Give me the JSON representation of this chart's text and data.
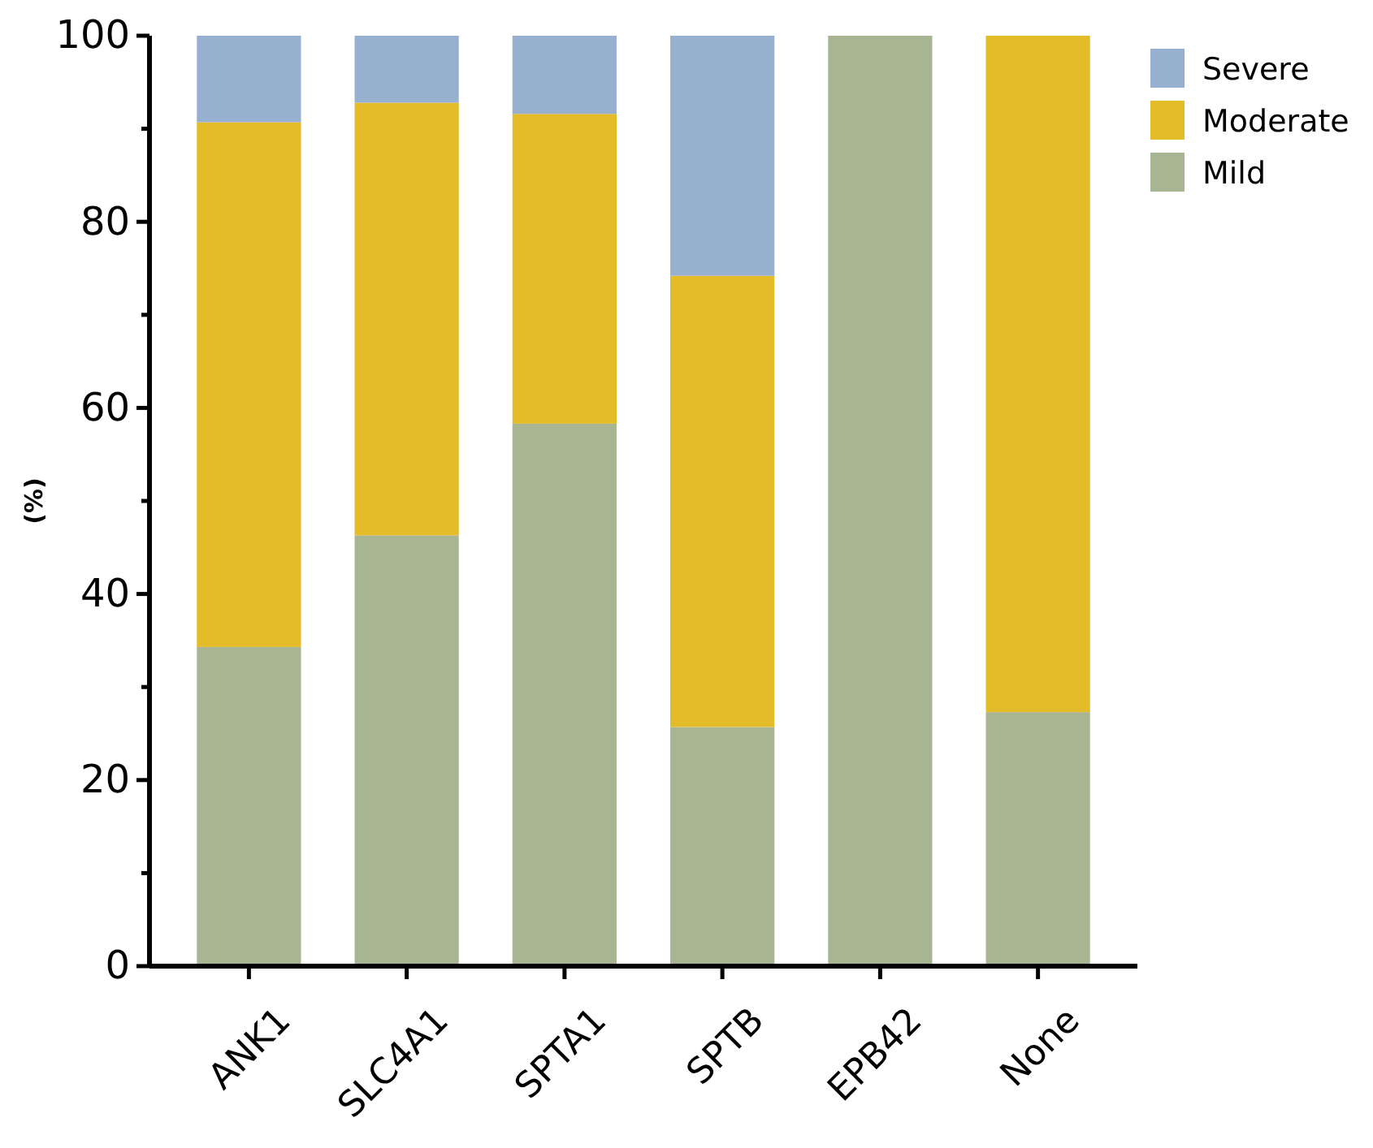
{
  "chart_data": {
    "type": "bar",
    "stacked": true,
    "ylabel": "(%)",
    "categories": [
      "ANK1",
      "SLC4A1",
      "SPTA1",
      "SPTB",
      "EPB42",
      "None"
    ],
    "series": [
      {
        "name": "Mild",
        "color": "#a7b592",
        "values": [
          34.3,
          46.3,
          58.3,
          25.7,
          100,
          27.3
        ]
      },
      {
        "name": "Moderate",
        "color": "#e4bb28",
        "values": [
          56.4,
          46.5,
          33.3,
          48.5,
          0,
          72.7
        ]
      },
      {
        "name": "Severe",
        "color": "#98b0d0",
        "values": [
          9.3,
          7.2,
          8.4,
          25.8,
          0,
          0
        ]
      }
    ],
    "ylim": [
      0,
      100
    ],
    "yticks": [
      0,
      {
        "value": 10,
        "label": null
      },
      20,
      {
        "value": 30,
        "label": null
      },
      40,
      {
        "value": 50,
        "label": null
      },
      60,
      {
        "value": 70,
        "label": null
      },
      80,
      {
        "value": 90,
        "label": null
      },
      100
    ],
    "legend": "top right",
    "grid": false
  }
}
